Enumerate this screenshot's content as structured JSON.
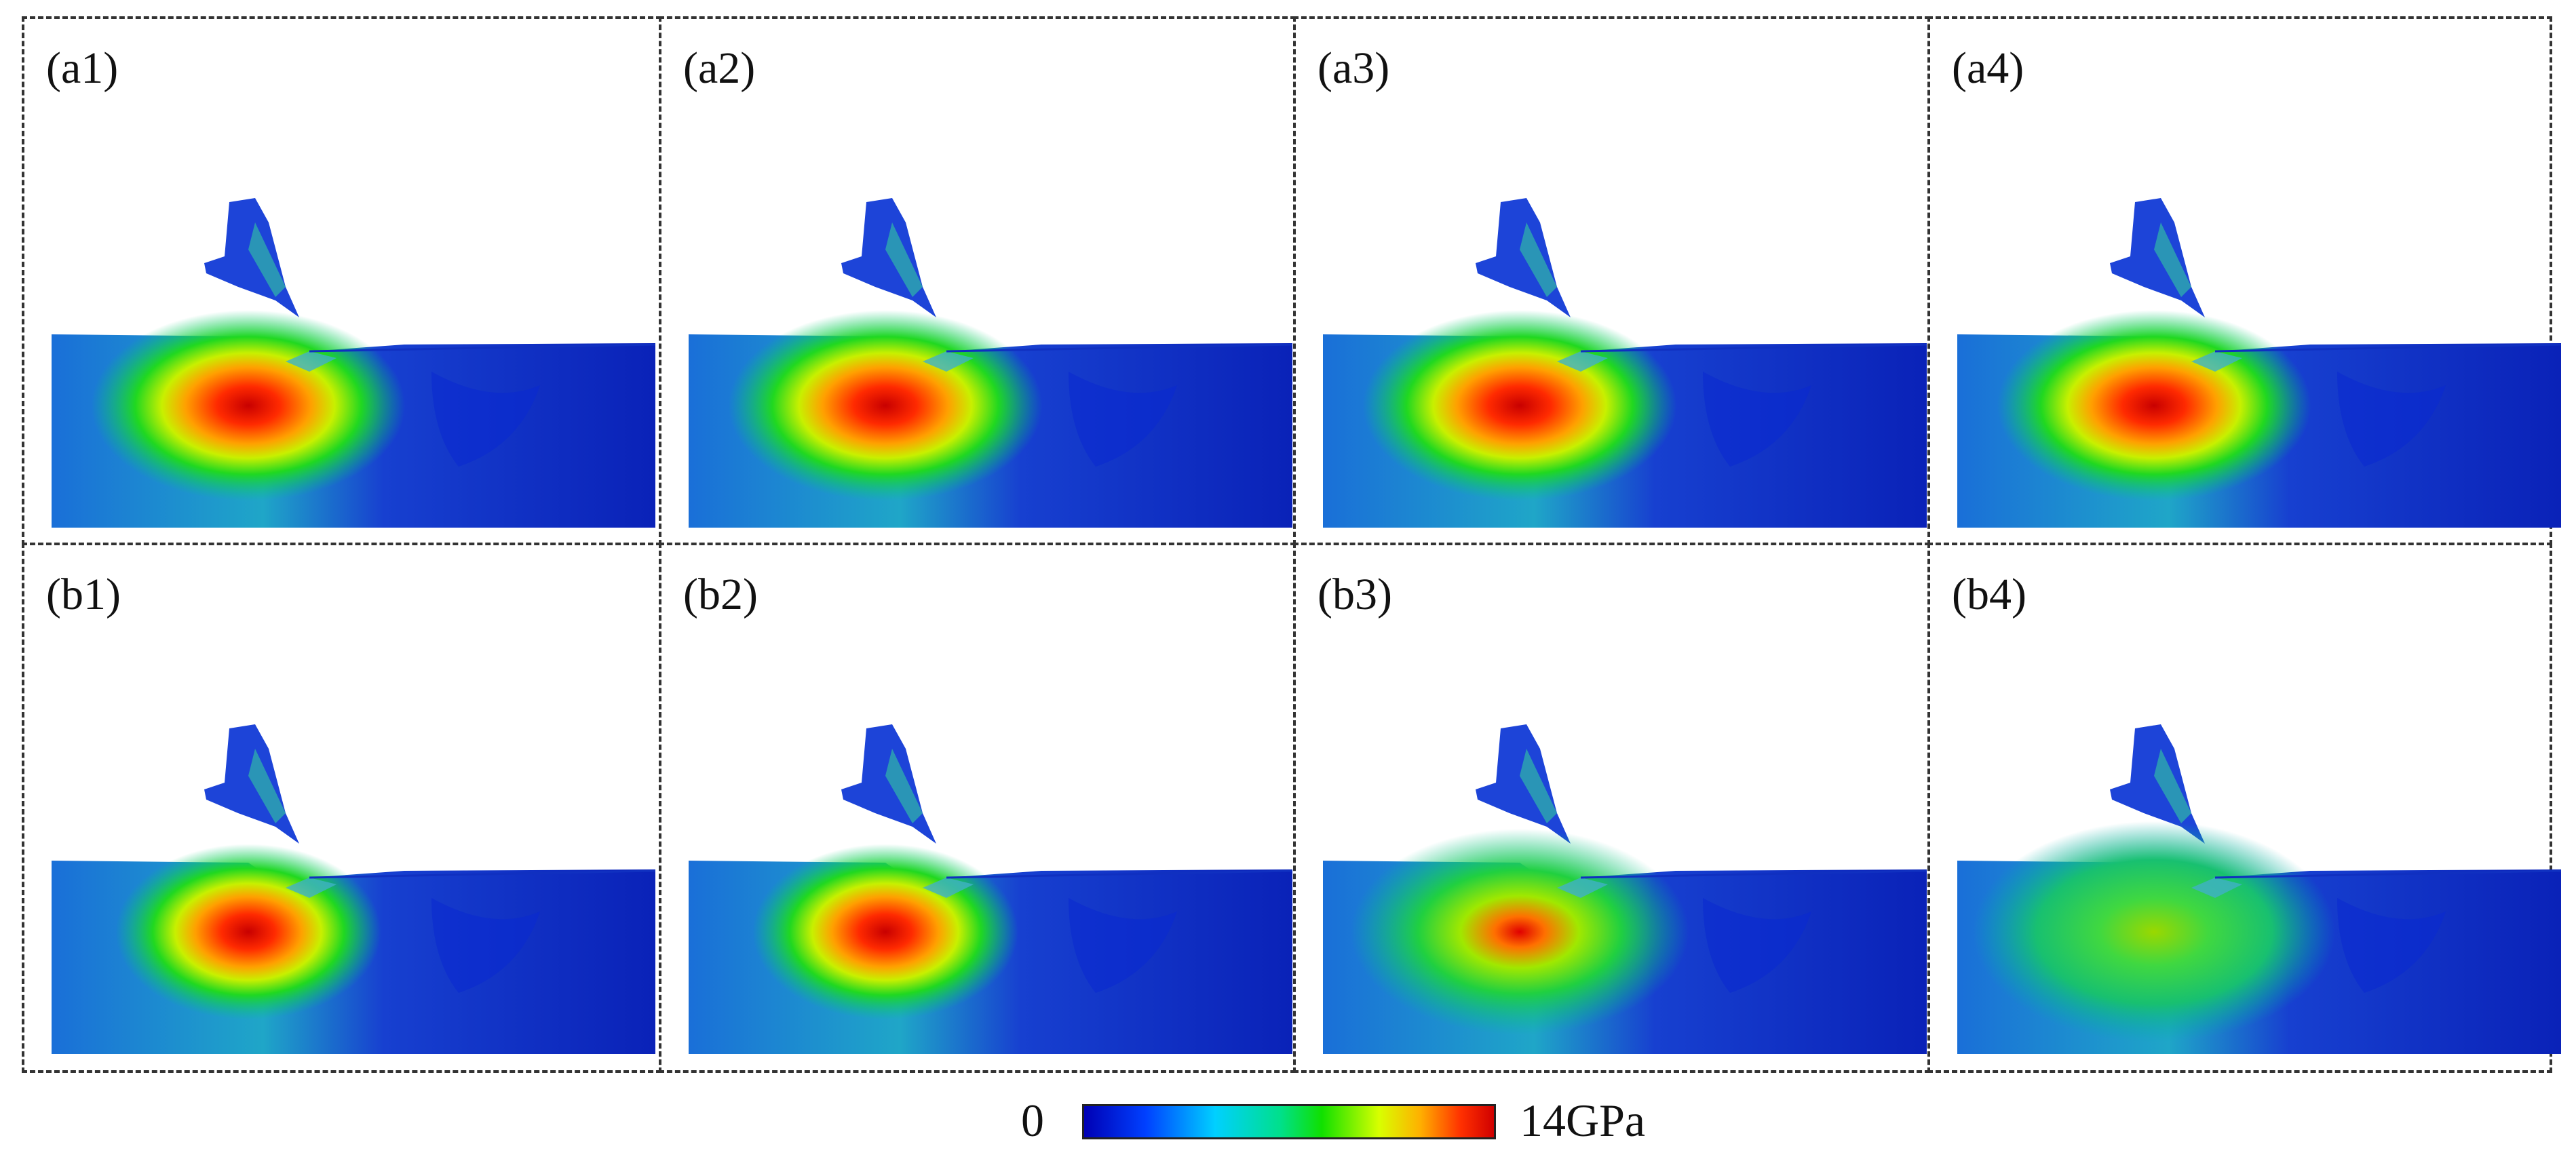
{
  "panels": [
    {
      "label": "(a1)",
      "id": "a1",
      "hot": "strong"
    },
    {
      "label": "(a2)",
      "id": "a2",
      "hot": "strong"
    },
    {
      "label": "(a3)",
      "id": "a3",
      "hot": "strong"
    },
    {
      "label": "(a4)",
      "id": "a4",
      "hot": "strong"
    },
    {
      "label": "(b1)",
      "id": "b1",
      "hot": "medium"
    },
    {
      "label": "(b2)",
      "id": "b2",
      "hot": "medium"
    },
    {
      "label": "(b3)",
      "id": "b3",
      "hot": "weak"
    },
    {
      "label": "(b4)",
      "id": "b4",
      "hot": "weaker"
    }
  ],
  "colorbar": {
    "min_label": "0",
    "max_label": "14GPa",
    "colors": [
      "#0000b4",
      "#0040ff",
      "#00d0ff",
      "#00e08a",
      "#10e000",
      "#d8ff00",
      "#ffb000",
      "#ff3000",
      "#d00000"
    ]
  }
}
